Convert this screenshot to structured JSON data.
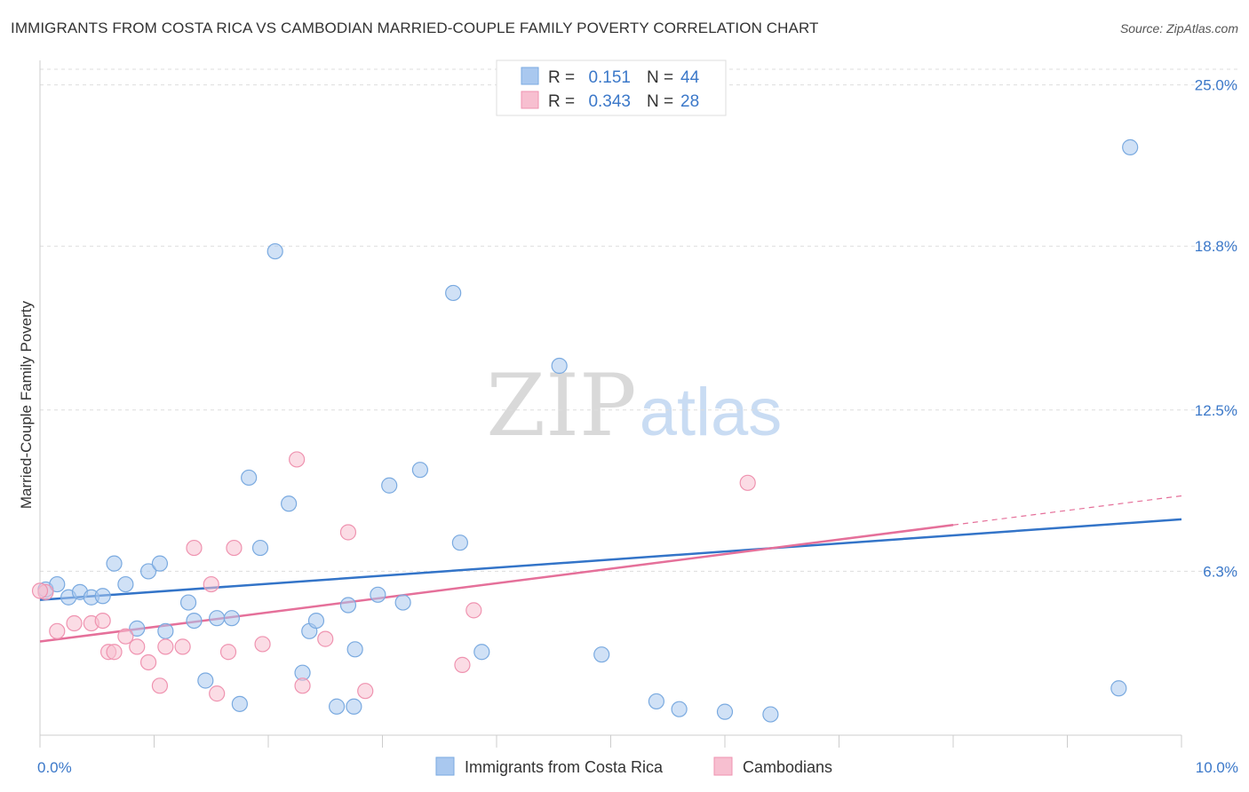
{
  "title": "IMMIGRANTS FROM COSTA RICA VS CAMBODIAN MARRIED-COUPLE FAMILY POVERTY CORRELATION CHART",
  "source": "Source: ZipAtlas.com",
  "watermark": {
    "zip": "ZIP",
    "atlas": "atlas"
  },
  "legend": {
    "rows": [
      {
        "r_label": "R =",
        "r_value": "0.151",
        "n_label": "N =",
        "n_value": "44",
        "color": "#a9c8ef",
        "stroke": "#7aaae0"
      },
      {
        "r_label": "R =",
        "r_value": "0.343",
        "n_label": "N =",
        "n_value": "28",
        "color": "#f7bfd0",
        "stroke": "#ef93b0"
      }
    ]
  },
  "chart_data": {
    "type": "scatter",
    "title": "IMMIGRANTS FROM COSTA RICA VS CAMBODIAN MARRIED-COUPLE FAMILY POVERTY CORRELATION CHART",
    "xlabel": "",
    "ylabel": "Married-Couple Family Poverty",
    "xlim": [
      0,
      10
    ],
    "ylim": [
      0,
      25.6
    ],
    "x_tick_labels": [
      {
        "value": 0,
        "label": "0.0%"
      },
      {
        "value": 10,
        "label": "10.0%"
      }
    ],
    "y_tick_labels": [
      {
        "value": 6.3,
        "label": "6.3%"
      },
      {
        "value": 12.5,
        "label": "12.5%"
      },
      {
        "value": 18.8,
        "label": "18.8%"
      },
      {
        "value": 25.0,
        "label": "25.0%"
      }
    ],
    "grid": true,
    "legend_position": "top-center",
    "series": [
      {
        "name": "Immigrants from Costa Rica",
        "color": "#a9c8ef",
        "stroke": "#7aaae0",
        "line_color": "#3374c8",
        "trend": {
          "x0": 0,
          "y0": 5.2,
          "x1": 10,
          "y1": 8.3
        },
        "points": [
          [
            0.05,
            5.6
          ],
          [
            0.15,
            5.8
          ],
          [
            0.25,
            5.3
          ],
          [
            0.35,
            5.5
          ],
          [
            0.45,
            5.3
          ],
          [
            0.55,
            5.35
          ],
          [
            0.65,
            6.6
          ],
          [
            0.75,
            5.8
          ],
          [
            0.85,
            4.1
          ],
          [
            0.95,
            6.3
          ],
          [
            1.05,
            6.6
          ],
          [
            1.1,
            4.0
          ],
          [
            1.3,
            5.1
          ],
          [
            1.35,
            4.4
          ],
          [
            1.45,
            2.1
          ],
          [
            1.55,
            4.5
          ],
          [
            1.68,
            4.5
          ],
          [
            1.75,
            1.2
          ],
          [
            1.83,
            9.9
          ],
          [
            1.93,
            7.2
          ],
          [
            2.06,
            18.6
          ],
          [
            2.18,
            8.9
          ],
          [
            2.3,
            2.4
          ],
          [
            2.36,
            4.0
          ],
          [
            2.42,
            4.4
          ],
          [
            2.6,
            1.1
          ],
          [
            2.7,
            5.0
          ],
          [
            2.76,
            3.3
          ],
          [
            2.75,
            1.1
          ],
          [
            2.96,
            5.4
          ],
          [
            3.06,
            9.6
          ],
          [
            3.18,
            5.1
          ],
          [
            3.33,
            10.2
          ],
          [
            3.62,
            17.0
          ],
          [
            3.68,
            7.4
          ],
          [
            3.87,
            3.2
          ],
          [
            4.55,
            14.2
          ],
          [
            4.92,
            3.1
          ],
          [
            5.4,
            1.3
          ],
          [
            5.6,
            1.0
          ],
          [
            6.0,
            0.9
          ],
          [
            6.4,
            0.8
          ],
          [
            9.45,
            1.8
          ],
          [
            9.55,
            22.6
          ]
        ]
      },
      {
        "name": "Cambodians",
        "color": "#f7bfd0",
        "stroke": "#ef93b0",
        "line_color": "#e5709a",
        "trend": {
          "x0": 0,
          "y0": 3.6,
          "x1": 10,
          "y1": 9.2,
          "solid_until": 8.0
        },
        "points": [
          [
            0.05,
            5.5
          ],
          [
            0.15,
            4.0
          ],
          [
            0.3,
            4.3
          ],
          [
            0.45,
            4.3
          ],
          [
            0.55,
            4.4
          ],
          [
            0.6,
            3.2
          ],
          [
            0.65,
            3.2
          ],
          [
            0.75,
            3.8
          ],
          [
            0.85,
            3.4
          ],
          [
            0.95,
            2.8
          ],
          [
            1.05,
            1.9
          ],
          [
            1.1,
            3.4
          ],
          [
            1.25,
            3.4
          ],
          [
            1.35,
            7.2
          ],
          [
            1.5,
            5.8
          ],
          [
            1.55,
            1.6
          ],
          [
            1.65,
            3.2
          ],
          [
            1.7,
            7.2
          ],
          [
            1.95,
            3.5
          ],
          [
            2.25,
            10.6
          ],
          [
            2.3,
            1.9
          ],
          [
            2.5,
            3.7
          ],
          [
            2.7,
            7.8
          ],
          [
            2.85,
            1.7
          ],
          [
            3.7,
            2.7
          ],
          [
            3.8,
            4.8
          ],
          [
            6.2,
            9.7
          ],
          [
            0.0,
            5.55
          ]
        ]
      }
    ]
  }
}
